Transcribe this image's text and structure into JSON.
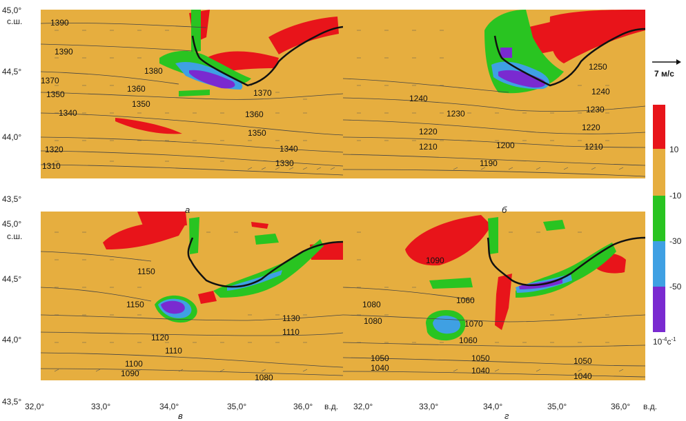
{
  "colors": {
    "background_field": "#E6AE3F",
    "red": "#E8141A",
    "green": "#29C421",
    "blue": "#3FA0E3",
    "violet": "#7A2AD0"
  },
  "axis": {
    "lat_top": "45,0°",
    "lat_top_suffix": "с.ш.",
    "lat_mid": "44,5°",
    "lat_low": "44,0°",
    "lat_bottom": "43,5°",
    "lon_labels": [
      "32,0°",
      "33,0°",
      "34,0°",
      "35,0°",
      "36,0°"
    ],
    "lon_suffix": "в.д."
  },
  "panels": {
    "a": {
      "label": "а",
      "contours": [
        "1390",
        "1390",
        "1380",
        "1370",
        "1360",
        "1350",
        "1350",
        "1340",
        "1370",
        "1360",
        "1350",
        "1340",
        "1330",
        "1320",
        "1310"
      ]
    },
    "b": {
      "label": "б",
      "contours": [
        "1250",
        "1240",
        "1240",
        "1230",
        "1230",
        "1220",
        "1220",
        "1210",
        "1200",
        "1210",
        "1190"
      ]
    },
    "c": {
      "label": "в",
      "contours": [
        "1150",
        "1150",
        "1130",
        "1120",
        "1110",
        "1110",
        "1100",
        "1090",
        "1080"
      ]
    },
    "d": {
      "label": "г",
      "contours": [
        "1090",
        "1080",
        "1080",
        "1070",
        "1060",
        "1060",
        "1050",
        "1050",
        "1050",
        "1040",
        "1040",
        "1040"
      ]
    }
  },
  "legend": {
    "vector_label": "7 м/с",
    "ticks": [
      "10",
      "-10",
      "-30",
      "-50"
    ],
    "units_main": "10",
    "units_exp": "-4",
    "units_tail": "с",
    "units_exp2": "-1"
  }
}
